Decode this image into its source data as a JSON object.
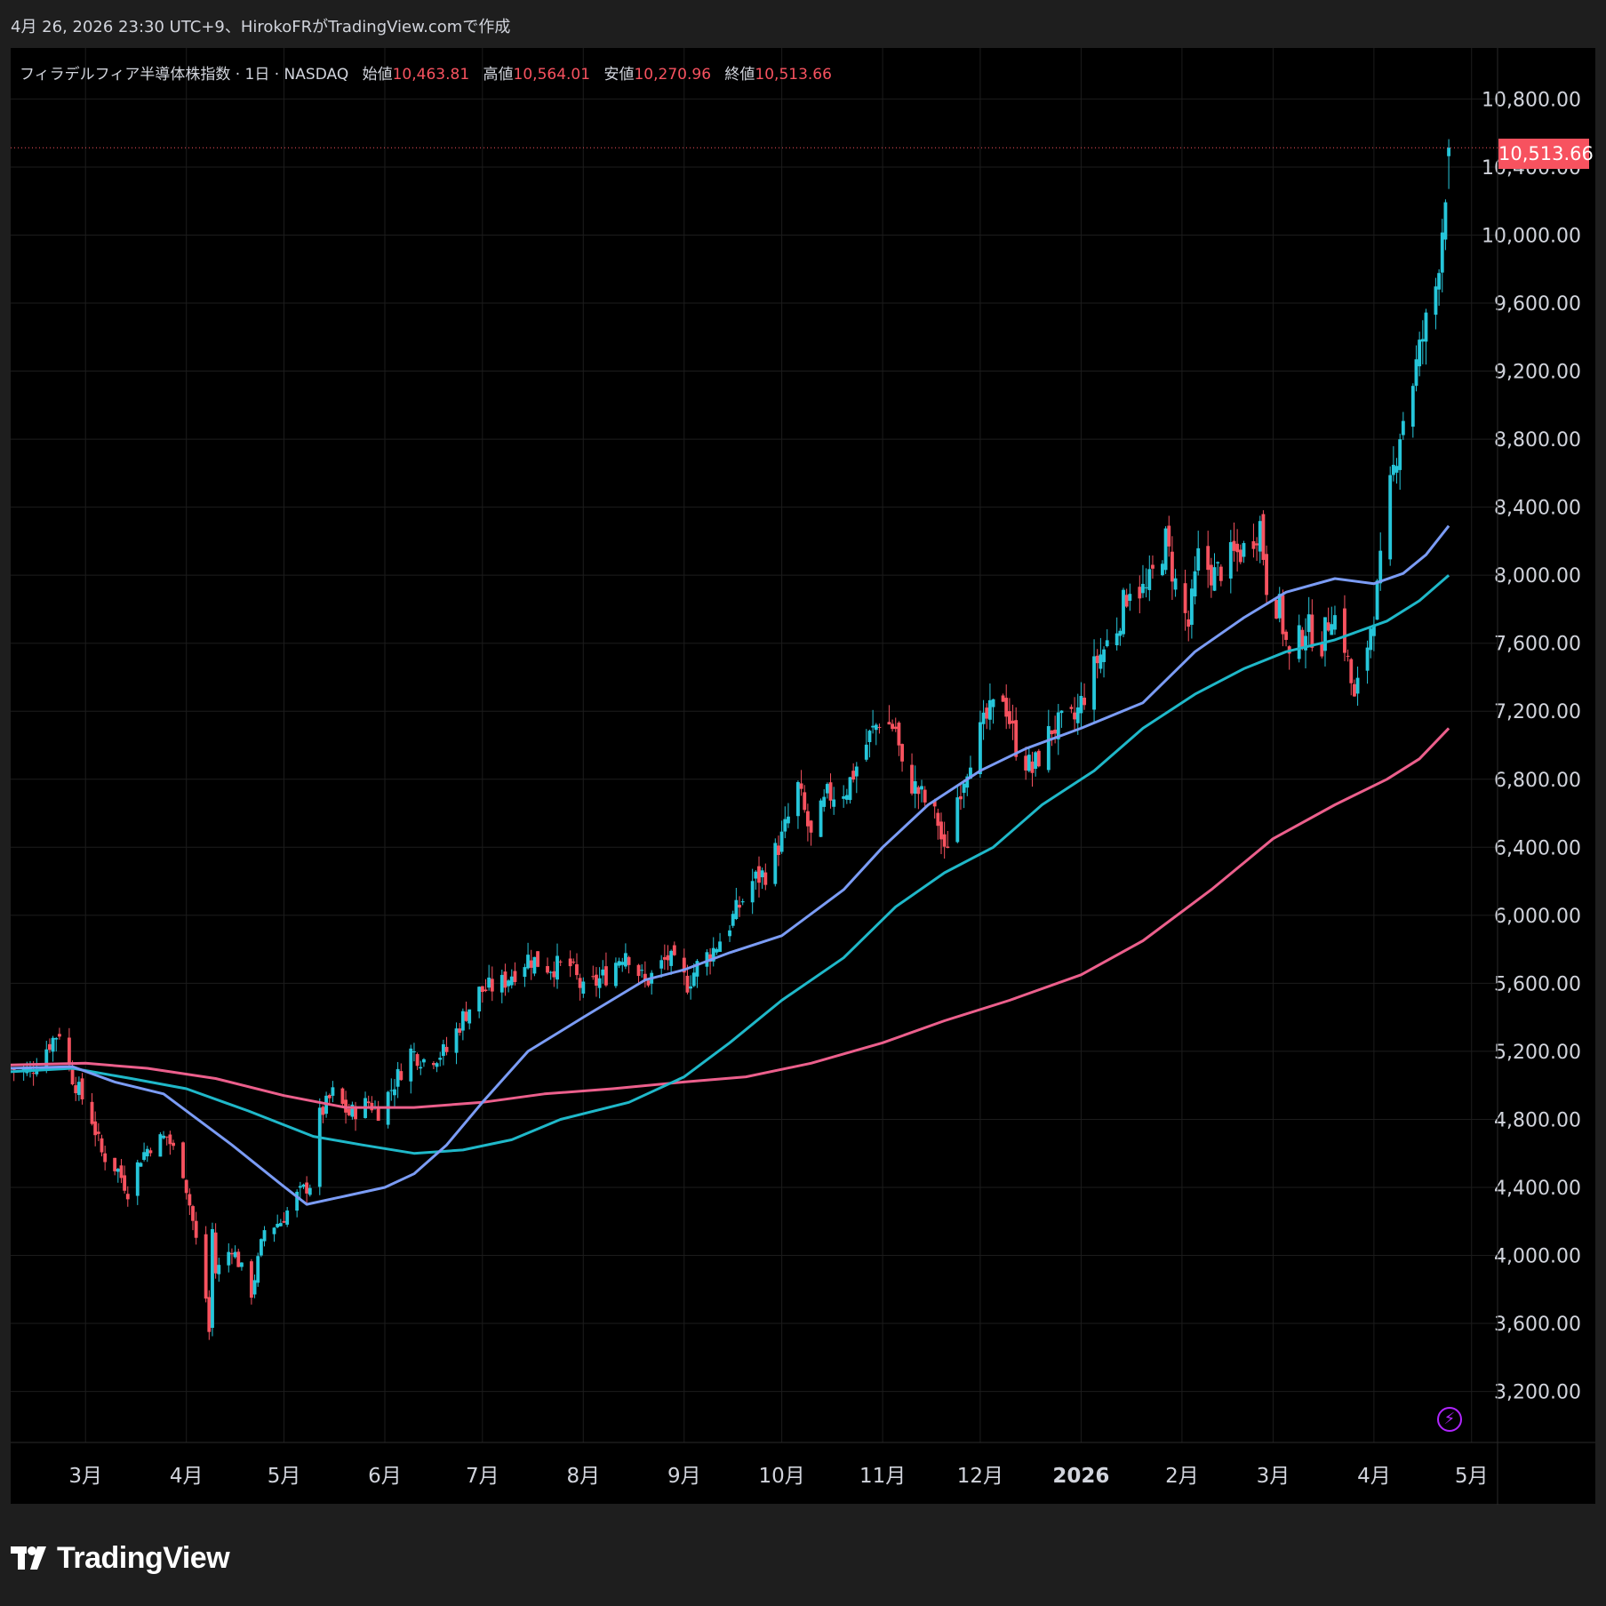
{
  "header": {
    "caption": "4月 26, 2026 23:30 UTC+9、HirokoFRがTradingView.comで作成"
  },
  "legend": {
    "symbol": "フィラデルフィア半導体株指数 · 1日 · NASDAQ",
    "open_label": "始値",
    "open": "10,463.81",
    "high_label": "高値",
    "high": "10,564.01",
    "low_label": "安値",
    "low": "10,270.96",
    "close_label": "終値",
    "close": "10,513.66"
  },
  "price_tag": "10,513.66",
  "brand": {
    "name": "TradingView"
  },
  "colors": {
    "up": "#26c6da",
    "down": "#f7525f",
    "ma_fast": "#7b9cf5",
    "ma_mid": "#1fb8c9",
    "ma_slow": "#ec5f8c",
    "grid": "#1c1c1c",
    "axis_text": "#d1d4dc"
  },
  "icons": [
    "tradingview-logo-icon",
    "lightning-icon"
  ],
  "chart_data": {
    "type": "candlestick",
    "y_ticks": [
      "3,200.00",
      "3,600.00",
      "4,000.00",
      "4,400.00",
      "4,800.00",
      "5,200.00",
      "5,600.00",
      "6,000.00",
      "6,400.00",
      "6,800.00",
      "7,200.00",
      "7,600.00",
      "8,000.00",
      "8,400.00",
      "8,800.00",
      "9,200.00",
      "9,600.00",
      "10,000.00",
      "10,400.00",
      "10,800.00"
    ],
    "y_range": [
      2900,
      11100
    ],
    "x_ticks": [
      {
        "label": "3月",
        "date": "2025-03-01"
      },
      {
        "label": "4月",
        "date": "2025-04-01"
      },
      {
        "label": "5月",
        "date": "2025-05-01"
      },
      {
        "label": "6月",
        "date": "2025-06-01"
      },
      {
        "label": "7月",
        "date": "2025-07-01"
      },
      {
        "label": "8月",
        "date": "2025-08-01"
      },
      {
        "label": "9月",
        "date": "2025-09-01"
      },
      {
        "label": "10月",
        "date": "2025-10-01"
      },
      {
        "label": "11月",
        "date": "2025-11-01"
      },
      {
        "label": "12月",
        "date": "2025-12-01"
      },
      {
        "label": "2026",
        "date": "2026-01-01",
        "bold": true
      },
      {
        "label": "2月",
        "date": "2026-02-01"
      },
      {
        "label": "3月",
        "date": "2026-03-01"
      },
      {
        "label": "4月",
        "date": "2026-04-01"
      },
      {
        "label": "5月",
        "date": "2026-05-01"
      }
    ],
    "x_range": [
      "2025-02-06",
      "2026-05-09"
    ],
    "close_path": [
      [
        "2025-02-06",
        5100
      ],
      [
        "2025-02-12",
        5080
      ],
      [
        "2025-02-18",
        5250
      ],
      [
        "2025-02-21",
        5320
      ],
      [
        "2025-02-25",
        5050
      ],
      [
        "2025-03-03",
        4800
      ],
      [
        "2025-03-06",
        4600
      ],
      [
        "2025-03-11",
        4500
      ],
      [
        "2025-03-14",
        4380
      ],
      [
        "2025-03-18",
        4580
      ],
      [
        "2025-03-21",
        4650
      ],
      [
        "2025-03-26",
        4700
      ],
      [
        "2025-03-31",
        4500
      ],
      [
        "2025-04-03",
        4200
      ],
      [
        "2025-04-07",
        3750
      ],
      [
        "2025-04-08",
        3550
      ],
      [
        "2025-04-09",
        4150
      ],
      [
        "2025-04-10",
        3900
      ],
      [
        "2025-04-15",
        4050
      ],
      [
        "2025-04-21",
        3780
      ],
      [
        "2025-04-25",
        4150
      ],
      [
        "2025-04-30",
        4200
      ],
      [
        "2025-05-05",
        4350
      ],
      [
        "2025-05-09",
        4420
      ],
      [
        "2025-05-12",
        4820
      ],
      [
        "2025-05-16",
        4950
      ],
      [
        "2025-05-21",
        4830
      ],
      [
        "2025-05-27",
        4900
      ],
      [
        "2025-05-30",
        4850
      ],
      [
        "2025-06-03",
        4980
      ],
      [
        "2025-06-09",
        5200
      ],
      [
        "2025-06-13",
        5150
      ],
      [
        "2025-06-20",
        5200
      ],
      [
        "2025-06-25",
        5400
      ],
      [
        "2025-06-30",
        5550
      ],
      [
        "2025-07-07",
        5600
      ],
      [
        "2025-07-15",
        5750
      ],
      [
        "2025-07-21",
        5700
      ],
      [
        "2025-07-28",
        5700
      ],
      [
        "2025-08-01",
        5550
      ],
      [
        "2025-08-08",
        5650
      ],
      [
        "2025-08-14",
        5800
      ],
      [
        "2025-08-20",
        5600
      ],
      [
        "2025-08-27",
        5750
      ],
      [
        "2025-09-02",
        5600
      ],
      [
        "2025-09-05",
        5700
      ],
      [
        "2025-09-10",
        5800
      ],
      [
        "2025-09-15",
        5950
      ],
      [
        "2025-09-22",
        6200
      ],
      [
        "2025-09-26",
        6250
      ],
      [
        "2025-10-01",
        6450
      ],
      [
        "2025-10-06",
        6750
      ],
      [
        "2025-10-10",
        6450
      ],
      [
        "2025-10-15",
        6700
      ],
      [
        "2025-10-21",
        6750
      ],
      [
        "2025-10-28",
        7050
      ],
      [
        "2025-10-31",
        7150
      ],
      [
        "2025-11-05",
        7100
      ],
      [
        "2025-11-07",
        6850
      ],
      [
        "2025-11-13",
        6700
      ],
      [
        "2025-11-18",
        6550
      ],
      [
        "2025-11-20",
        6350
      ],
      [
        "2025-11-24",
        6700
      ],
      [
        "2025-11-28",
        6950
      ],
      [
        "2025-12-03",
        7150
      ],
      [
        "2025-12-08",
        7300
      ],
      [
        "2025-12-12",
        7000
      ],
      [
        "2025-12-17",
        6850
      ],
      [
        "2025-12-23",
        7100
      ],
      [
        "2025-12-30",
        7150
      ],
      [
        "2026-01-06",
        7500
      ],
      [
        "2026-01-12",
        7700
      ],
      [
        "2026-01-16",
        7950
      ],
      [
        "2026-01-21",
        7900
      ],
      [
        "2026-01-27",
        8200
      ],
      [
        "2026-01-30",
        7950
      ],
      [
        "2026-02-03",
        7700
      ],
      [
        "2026-02-06",
        8100
      ],
      [
        "2026-02-11",
        8000
      ],
      [
        "2026-02-16",
        8100
      ],
      [
        "2026-02-20",
        8150
      ],
      [
        "2026-02-25",
        8300
      ],
      [
        "2026-02-27",
        7950
      ],
      [
        "2026-03-03",
        7800
      ],
      [
        "2026-03-06",
        7500
      ],
      [
        "2026-03-11",
        7700
      ],
      [
        "2026-03-16",
        7600
      ],
      [
        "2026-03-19",
        7800
      ],
      [
        "2026-03-23",
        7600
      ],
      [
        "2026-03-26",
        7250
      ],
      [
        "2026-03-30",
        7600
      ],
      [
        "2026-04-02",
        7900
      ],
      [
        "2026-04-06",
        8500
      ],
      [
        "2026-04-09",
        8850
      ],
      [
        "2026-04-13",
        9150
      ],
      [
        "2026-04-16",
        9400
      ],
      [
        "2026-04-20",
        9700
      ],
      [
        "2026-04-22",
        10050
      ],
      [
        "2026-04-24",
        10513.66
      ]
    ],
    "last_candle": {
      "open": 10463.81,
      "high": 10564.01,
      "low": 10270.96,
      "close": 10513.66
    },
    "ma_fast": [
      [
        "2025-02-06",
        5100
      ],
      [
        "2025-02-25",
        5110
      ],
      [
        "2025-03-10",
        5020
      ],
      [
        "2025-03-25",
        4950
      ],
      [
        "2025-04-01",
        4850
      ],
      [
        "2025-04-15",
        4650
      ],
      [
        "2025-04-30",
        4420
      ],
      [
        "2025-05-08",
        4300
      ],
      [
        "2025-05-20",
        4350
      ],
      [
        "2025-06-01",
        4400
      ],
      [
        "2025-06-10",
        4480
      ],
      [
        "2025-06-20",
        4650
      ],
      [
        "2025-07-01",
        4900
      ],
      [
        "2025-07-15",
        5200
      ],
      [
        "2025-08-01",
        5400
      ],
      [
        "2025-08-20",
        5620
      ],
      [
        "2025-09-01",
        5680
      ],
      [
        "2025-09-15",
        5780
      ],
      [
        "2025-10-01",
        5880
      ],
      [
        "2025-10-20",
        6150
      ],
      [
        "2025-11-01",
        6400
      ],
      [
        "2025-11-15",
        6650
      ],
      [
        "2025-12-01",
        6850
      ],
      [
        "2025-12-15",
        6980
      ],
      [
        "2026-01-01",
        7100
      ],
      [
        "2026-01-20",
        7250
      ],
      [
        "2026-02-05",
        7550
      ],
      [
        "2026-02-20",
        7750
      ],
      [
        "2026-03-05",
        7900
      ],
      [
        "2026-03-20",
        7980
      ],
      [
        "2026-04-01",
        7950
      ],
      [
        "2026-04-10",
        8010
      ],
      [
        "2026-04-17",
        8120
      ],
      [
        "2026-04-24",
        8290
      ]
    ],
    "ma_mid": [
      [
        "2025-02-06",
        5080
      ],
      [
        "2025-02-25",
        5100
      ],
      [
        "2025-03-15",
        5040
      ],
      [
        "2025-04-01",
        4980
      ],
      [
        "2025-04-20",
        4850
      ],
      [
        "2025-05-10",
        4700
      ],
      [
        "2025-05-25",
        4650
      ],
      [
        "2025-06-10",
        4600
      ],
      [
        "2025-06-25",
        4620
      ],
      [
        "2025-07-10",
        4680
      ],
      [
        "2025-07-25",
        4800
      ],
      [
        "2025-08-15",
        4900
      ],
      [
        "2025-09-01",
        5050
      ],
      [
        "2025-09-15",
        5250
      ],
      [
        "2025-10-01",
        5500
      ],
      [
        "2025-10-20",
        5750
      ],
      [
        "2025-11-05",
        6050
      ],
      [
        "2025-11-20",
        6250
      ],
      [
        "2025-12-05",
        6400
      ],
      [
        "2025-12-20",
        6650
      ],
      [
        "2026-01-05",
        6850
      ],
      [
        "2026-01-20",
        7100
      ],
      [
        "2026-02-05",
        7300
      ],
      [
        "2026-02-20",
        7450
      ],
      [
        "2026-03-05",
        7550
      ],
      [
        "2026-03-20",
        7620
      ],
      [
        "2026-04-05",
        7730
      ],
      [
        "2026-04-15",
        7850
      ],
      [
        "2026-04-24",
        8000
      ]
    ],
    "ma_slow": [
      [
        "2025-02-06",
        5120
      ],
      [
        "2025-03-01",
        5130
      ],
      [
        "2025-03-20",
        5100
      ],
      [
        "2025-04-10",
        5040
      ],
      [
        "2025-05-01",
        4940
      ],
      [
        "2025-05-20",
        4870
      ],
      [
        "2025-06-10",
        4870
      ],
      [
        "2025-07-01",
        4900
      ],
      [
        "2025-07-20",
        4950
      ],
      [
        "2025-08-10",
        4980
      ],
      [
        "2025-09-01",
        5020
      ],
      [
        "2025-09-20",
        5050
      ],
      [
        "2025-10-10",
        5130
      ],
      [
        "2025-11-01",
        5250
      ],
      [
        "2025-11-20",
        5380
      ],
      [
        "2025-12-10",
        5500
      ],
      [
        "2026-01-01",
        5650
      ],
      [
        "2026-01-20",
        5850
      ],
      [
        "2026-02-10",
        6150
      ],
      [
        "2026-03-01",
        6450
      ],
      [
        "2026-03-20",
        6650
      ],
      [
        "2026-04-05",
        6800
      ],
      [
        "2026-04-15",
        6920
      ],
      [
        "2026-04-24",
        7100
      ]
    ]
  }
}
